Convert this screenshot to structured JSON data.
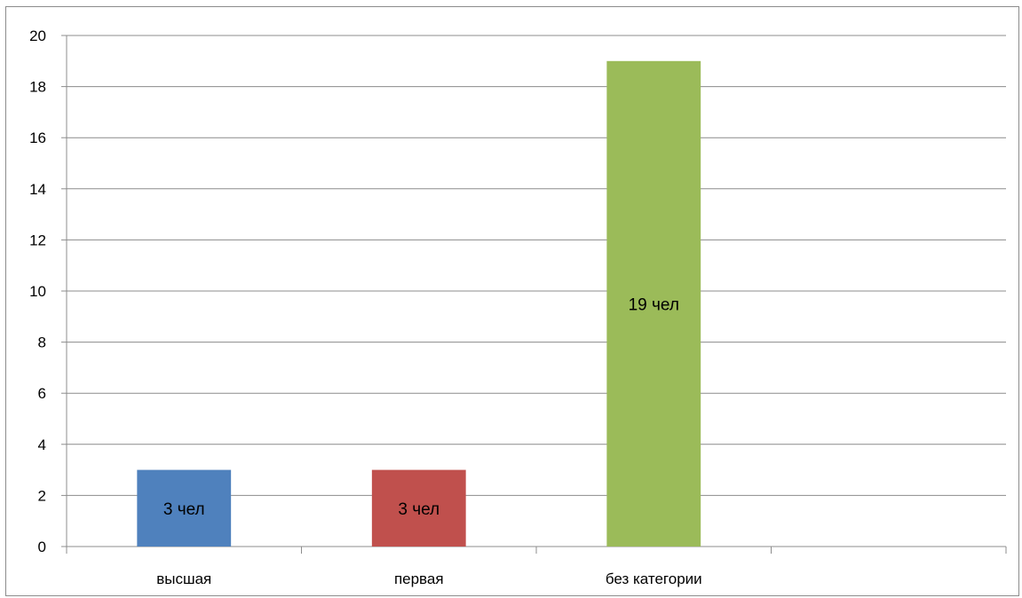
{
  "chart_data": {
    "type": "bar",
    "categories": [
      "высшая",
      "первая",
      "без категории"
    ],
    "values": [
      3,
      3,
      19
    ],
    "data_labels": [
      "3 чел",
      "3 чел",
      "19 чел"
    ],
    "colors": [
      "#4f81bd",
      "#c0504d",
      "#9bbb59"
    ],
    "title": "",
    "xlabel": "",
    "ylabel": "",
    "ylim": [
      0,
      20
    ],
    "yticks": [
      0,
      2,
      4,
      6,
      8,
      10,
      12,
      14,
      16,
      18,
      20
    ],
    "grid": true,
    "legend": "none"
  }
}
